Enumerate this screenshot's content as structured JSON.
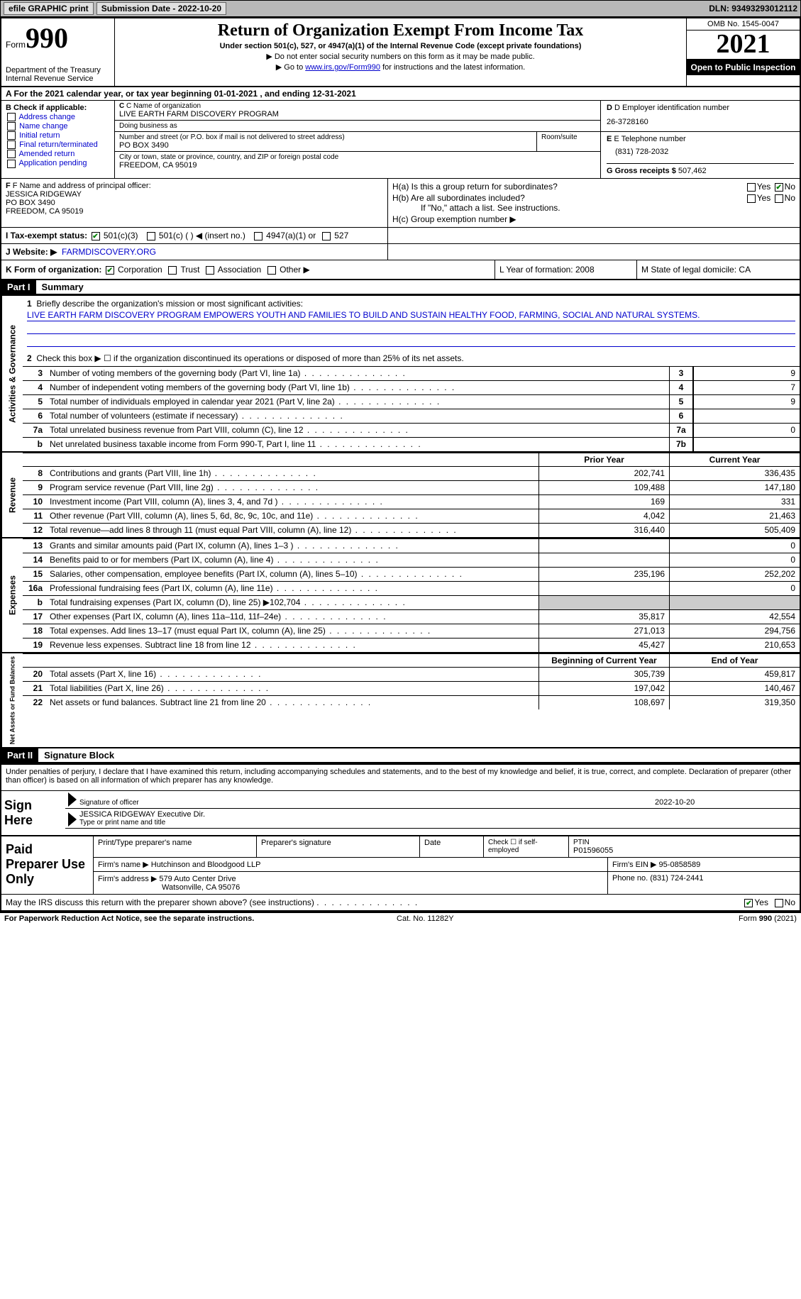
{
  "topbar": {
    "efile": "efile GRAPHIC print",
    "submission_label": "Submission Date - 2022-10-20",
    "dln": "DLN: 93493293012112"
  },
  "header": {
    "form_word": "Form",
    "form_num": "990",
    "dept": "Department of the Treasury",
    "irs": "Internal Revenue Service",
    "title": "Return of Organization Exempt From Income Tax",
    "sub": "Under section 501(c), 527, or 4947(a)(1) of the Internal Revenue Code (except private foundations)",
    "note1": "▶ Do not enter social security numbers on this form as it may be made public.",
    "note2_pre": "▶ Go to ",
    "note2_link": "www.irs.gov/Form990",
    "note2_post": " for instructions and the latest information.",
    "omb": "OMB No. 1545-0047",
    "year": "2021",
    "open": "Open to Public Inspection"
  },
  "row_a": "A For the 2021 calendar year, or tax year beginning 01-01-2021    , and ending 12-31-2021",
  "col_b": {
    "title": "B Check if applicable:",
    "items": [
      "Address change",
      "Name change",
      "Initial return",
      "Final return/terminated",
      "Amended return",
      "Application pending"
    ]
  },
  "c": {
    "name_label": "C Name of organization",
    "name": "LIVE EARTH FARM DISCOVERY PROGRAM",
    "dba_label": "Doing business as",
    "dba": "",
    "street_label": "Number and street (or P.O. box if mail is not delivered to street address)",
    "room_label": "Room/suite",
    "street": "PO BOX 3490",
    "city_label": "City or town, state or province, country, and ZIP or foreign postal code",
    "city": "FREEDOM, CA   95019"
  },
  "d": {
    "label": "D Employer identification number",
    "val": "26-3728160"
  },
  "e": {
    "label": "E Telephone number",
    "val": "(831) 728-2032"
  },
  "g": {
    "label": "G Gross receipts $",
    "val": "507,462"
  },
  "f": {
    "label": "F Name and address of principal officer:",
    "name": "JESSICA RIDGEWAY",
    "street": "PO BOX 3490",
    "city": "FREEDOM, CA   95019"
  },
  "h": {
    "a": "H(a)  Is this a group return for subordinates?",
    "b": "H(b)  Are all subordinates included?",
    "b_note": "If \"No,\" attach a list. See instructions.",
    "c": "H(c)  Group exemption number ▶"
  },
  "i": {
    "label": "I   Tax-exempt status:",
    "opt1": "501(c)(3)",
    "opt2": "501(c) (   ) ◀ (insert no.)",
    "opt3": "4947(a)(1) or",
    "opt4": "527"
  },
  "j": {
    "label": "J   Website: ▶",
    "val": "FARMDISCOVERY.ORG"
  },
  "k": {
    "label": "K Form of organization:",
    "opts": [
      "Corporation",
      "Trust",
      "Association",
      "Other ▶"
    ],
    "l": "L Year of formation: 2008",
    "m": "M State of legal domicile: CA"
  },
  "part1": {
    "hdr": "Part I",
    "title": "Summary"
  },
  "summary": {
    "line1_label": "Briefly describe the organization's mission or most significant activities:",
    "line1_text": "LIVE EARTH FARM DISCOVERY PROGRAM EMPOWERS YOUTH AND FAMILIES TO BUILD AND SUSTAIN HEALTHY FOOD, FARMING, SOCIAL AND NATURAL SYSTEMS.",
    "line2": "Check this box ▶ ☐ if the organization discontinued its operations or disposed of more than 25% of its net assets.",
    "lines_gov": [
      {
        "n": "3",
        "d": "Number of voting members of the governing body (Part VI, line 1a)",
        "box": "3",
        "v": "9"
      },
      {
        "n": "4",
        "d": "Number of independent voting members of the governing body (Part VI, line 1b)",
        "box": "4",
        "v": "7"
      },
      {
        "n": "5",
        "d": "Total number of individuals employed in calendar year 2021 (Part V, line 2a)",
        "box": "5",
        "v": "9"
      },
      {
        "n": "6",
        "d": "Total number of volunteers (estimate if necessary)",
        "box": "6",
        "v": ""
      },
      {
        "n": "7a",
        "d": "Total unrelated business revenue from Part VIII, column (C), line 12",
        "box": "7a",
        "v": "0"
      },
      {
        "n": "b",
        "d": "Net unrelated business taxable income from Form 990-T, Part I, line 11",
        "box": "7b",
        "v": ""
      }
    ],
    "col_hdr_prior": "Prior Year",
    "col_hdr_current": "Current Year",
    "revenue": [
      {
        "n": "8",
        "d": "Contributions and grants (Part VIII, line 1h)",
        "p": "202,741",
        "c": "336,435"
      },
      {
        "n": "9",
        "d": "Program service revenue (Part VIII, line 2g)",
        "p": "109,488",
        "c": "147,180"
      },
      {
        "n": "10",
        "d": "Investment income (Part VIII, column (A), lines 3, 4, and 7d )",
        "p": "169",
        "c": "331"
      },
      {
        "n": "11",
        "d": "Other revenue (Part VIII, column (A), lines 5, 6d, 8c, 9c, 10c, and 11e)",
        "p": "4,042",
        "c": "21,463"
      },
      {
        "n": "12",
        "d": "Total revenue—add lines 8 through 11 (must equal Part VIII, column (A), line 12)",
        "p": "316,440",
        "c": "505,409"
      }
    ],
    "expenses": [
      {
        "n": "13",
        "d": "Grants and similar amounts paid (Part IX, column (A), lines 1–3 )",
        "p": "",
        "c": "0"
      },
      {
        "n": "14",
        "d": "Benefits paid to or for members (Part IX, column (A), line 4)",
        "p": "",
        "c": "0"
      },
      {
        "n": "15",
        "d": "Salaries, other compensation, employee benefits (Part IX, column (A), lines 5–10)",
        "p": "235,196",
        "c": "252,202"
      },
      {
        "n": "16a",
        "d": "Professional fundraising fees (Part IX, column (A), line 11e)",
        "p": "",
        "c": "0"
      },
      {
        "n": "b",
        "d": "Total fundraising expenses (Part IX, column (D), line 25) ▶102,704",
        "p": "SHADE",
        "c": "SHADE"
      },
      {
        "n": "17",
        "d": "Other expenses (Part IX, column (A), lines 11a–11d, 11f–24e)",
        "p": "35,817",
        "c": "42,554"
      },
      {
        "n": "18",
        "d": "Total expenses. Add lines 13–17 (must equal Part IX, column (A), line 25)",
        "p": "271,013",
        "c": "294,756"
      },
      {
        "n": "19",
        "d": "Revenue less expenses. Subtract line 18 from line 12",
        "p": "45,427",
        "c": "210,653"
      }
    ],
    "col_hdr_begin": "Beginning of Current Year",
    "col_hdr_end": "End of Year",
    "netassets": [
      {
        "n": "20",
        "d": "Total assets (Part X, line 16)",
        "p": "305,739",
        "c": "459,817"
      },
      {
        "n": "21",
        "d": "Total liabilities (Part X, line 26)",
        "p": "197,042",
        "c": "140,467"
      },
      {
        "n": "22",
        "d": "Net assets or fund balances. Subtract line 21 from line 20",
        "p": "108,697",
        "c": "319,350"
      }
    ],
    "vtab_gov": "Activities & Governance",
    "vtab_rev": "Revenue",
    "vtab_exp": "Expenses",
    "vtab_net": "Net Assets or Fund Balances"
  },
  "part2": {
    "hdr": "Part II",
    "title": "Signature Block"
  },
  "sig": {
    "decl": "Under penalties of perjury, I declare that I have examined this return, including accompanying schedules and statements, and to the best of my knowledge and belief, it is true, correct, and complete. Declaration of preparer (other than officer) is based on all information of which preparer has any knowledge.",
    "sign_here": "Sign Here",
    "sig_officer": "Signature of officer",
    "sig_date": "2022-10-20",
    "name_title": "JESSICA RIDGEWAY Executive Dir.",
    "name_title_label": "Type or print name and title"
  },
  "prep": {
    "title": "Paid Preparer Use Only",
    "h1": "Print/Type preparer's name",
    "h2": "Preparer's signature",
    "h3": "Date",
    "h4": "Check ☐ if self-employed",
    "h5_label": "PTIN",
    "h5": "P01596055",
    "firm_name_label": "Firm's name     ▶",
    "firm_name": "Hutchinson and Bloodgood LLP",
    "firm_ein": "Firm's EIN ▶ 95-0858589",
    "firm_addr_label": "Firm's address ▶",
    "firm_addr1": "579 Auto Center Drive",
    "firm_addr2": "Watsonville, CA   95076",
    "phone": "Phone no. (831) 724-2441"
  },
  "footer_q": "May the IRS discuss this return with the preparer shown above? (see instructions)",
  "bottom": {
    "l": "For Paperwork Reduction Act Notice, see the separate instructions.",
    "m": "Cat. No. 11282Y",
    "r": "Form 990 (2021)"
  }
}
